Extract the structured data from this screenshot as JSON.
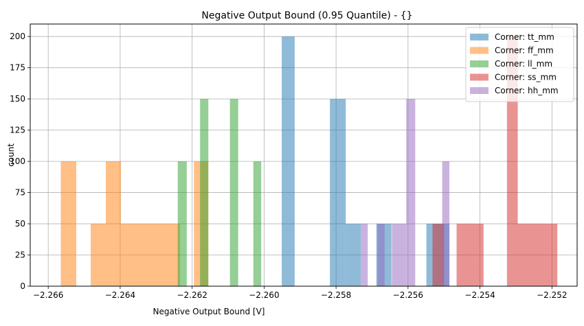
{
  "chart_data": {
    "type": "bar",
    "title": "Negative Output Bound (0.95 Quantile) - {}",
    "xlabel": "Negative Output Bound [V]",
    "ylabel": "count",
    "xlim": [
      -2.2665,
      -2.2513
    ],
    "ylim": [
      0,
      210
    ],
    "x_ticks": [
      -2.266,
      -2.264,
      -2.262,
      -2.26,
      -2.258,
      -2.256,
      -2.254,
      -2.252
    ],
    "x_tick_labels": [
      "−2.266",
      "−2.264",
      "−2.262",
      "−2.260",
      "−2.258",
      "−2.256",
      "−2.254",
      "−2.252"
    ],
    "y_ticks": [
      0,
      25,
      50,
      75,
      100,
      125,
      150,
      175,
      200
    ],
    "y_tick_labels": [
      "0",
      "25",
      "50",
      "75",
      "100",
      "125",
      "150",
      "175",
      "200"
    ],
    "grid": true,
    "legend_position": "top-right",
    "bar_alpha": 0.5,
    "series": [
      {
        "name": "Corner: tt_mm",
        "color": "#1f77b4",
        "bins": [
          {
            "x0": -2.25951,
            "x1": -2.25915,
            "count": 200
          },
          {
            "x0": -2.25817,
            "x1": -2.25773,
            "count": 150
          },
          {
            "x0": -2.25773,
            "x1": -2.25731,
            "count": 50
          },
          {
            "x0": -2.25688,
            "x1": -2.25646,
            "count": 50
          },
          {
            "x0": -2.25549,
            "x1": -2.25507,
            "count": 50
          },
          {
            "x0": -2.25507,
            "x1": -2.25485,
            "count": 50
          }
        ]
      },
      {
        "name": "Corner: ff_mm",
        "color": "#ff7f0e",
        "bins": [
          {
            "x0": -2.26565,
            "x1": -2.26522,
            "count": 100
          },
          {
            "x0": -2.26482,
            "x1": -2.2644,
            "count": 50
          },
          {
            "x0": -2.2644,
            "x1": -2.26398,
            "count": 100
          },
          {
            "x0": -2.26398,
            "x1": -2.26356,
            "count": 50
          },
          {
            "x0": -2.26356,
            "x1": -2.26234,
            "count": 50
          },
          {
            "x0": -2.26195,
            "x1": -2.26155,
            "count": 100
          }
        ]
      },
      {
        "name": "Corner: ll_mm",
        "color": "#2ca02c",
        "bins": [
          {
            "x0": -2.2624,
            "x1": -2.26215,
            "count": 100
          },
          {
            "x0": -2.26178,
            "x1": -2.26155,
            "count": 150
          },
          {
            "x0": -2.26095,
            "x1": -2.26072,
            "count": 150
          },
          {
            "x0": -2.2603,
            "x1": -2.26008,
            "count": 100
          }
        ]
      },
      {
        "name": "Corner: ss_mm",
        "color": "#d62728",
        "bins": [
          {
            "x0": -2.25532,
            "x1": -2.255,
            "count": 50
          },
          {
            "x0": -2.25465,
            "x1": -2.2539,
            "count": 50
          },
          {
            "x0": -2.25325,
            "x1": -2.25295,
            "count": 200
          },
          {
            "x0": -2.25295,
            "x1": -2.25185,
            "count": 50
          }
        ]
      },
      {
        "name": "Corner: hh_mm",
        "color": "#9467bd",
        "bins": [
          {
            "x0": -2.25731,
            "x1": -2.25712,
            "count": 50
          },
          {
            "x0": -2.25685,
            "x1": -2.25665,
            "count": 50
          },
          {
            "x0": -2.25645,
            "x1": -2.25605,
            "count": 50
          },
          {
            "x0": -2.25605,
            "x1": -2.2558,
            "count": 150
          },
          {
            "x0": -2.25505,
            "x1": -2.25485,
            "count": 100
          }
        ]
      }
    ]
  }
}
